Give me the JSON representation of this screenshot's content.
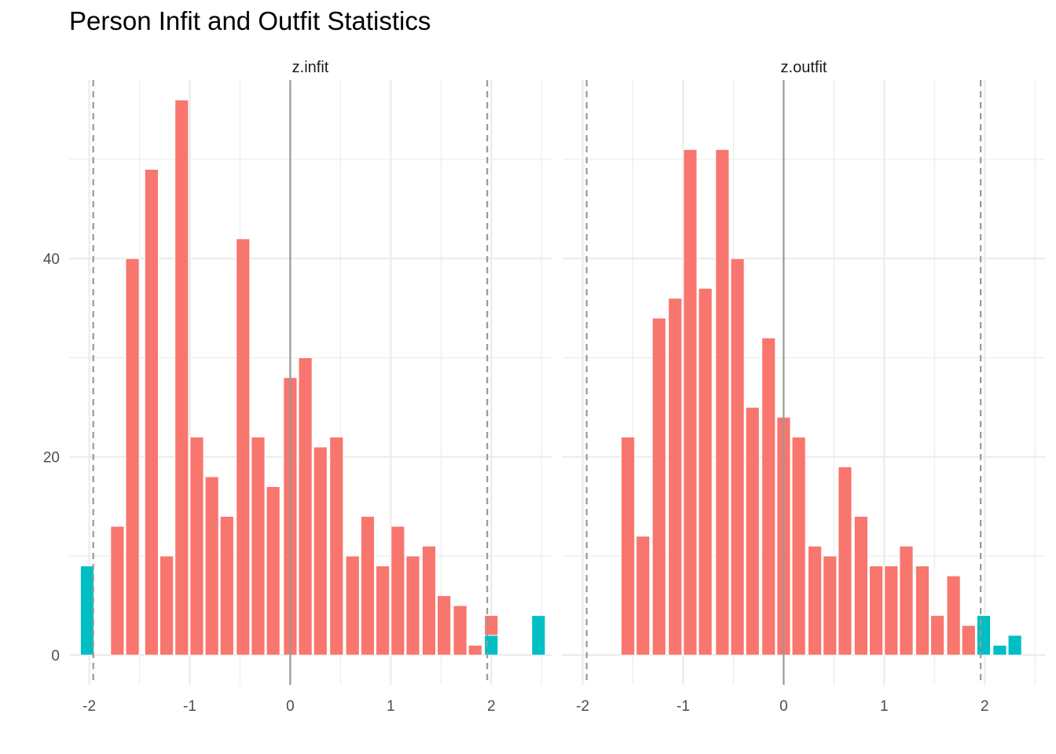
{
  "chart_data": {
    "type": "bar",
    "title": "Person Infit and Outfit Statistics",
    "xlabel": "",
    "ylabel": "",
    "grid": true,
    "legend": "none",
    "colors": {
      "within": "#F8766D",
      "outside": "#00BFC4",
      "refline_solid": "#999999",
      "refline_dashed": "#999999"
    },
    "xlim": [
      -2.2,
      2.6
    ],
    "ylim": [
      -3,
      58
    ],
    "x_ticks": [
      -2,
      -1,
      0,
      1,
      2
    ],
    "x_tick_labels": [
      "-2",
      "-1",
      "0",
      "1",
      "2"
    ],
    "y_ticks": [
      0,
      20,
      40
    ],
    "y_tick_labels": [
      "0",
      "20",
      "40"
    ],
    "reference_lines": {
      "solid": [
        0
      ],
      "dashed": [
        -1.96,
        1.96
      ]
    },
    "panels": [
      {
        "strip_label": "z.infit",
        "bin_width": 0.15,
        "bars": [
          {
            "x": -2.02,
            "within": 0,
            "outside": 9
          },
          {
            "x": -1.72,
            "within": 13,
            "outside": 0
          },
          {
            "x": -1.57,
            "within": 40,
            "outside": 0
          },
          {
            "x": -1.38,
            "within": 49,
            "outside": 0
          },
          {
            "x": -1.23,
            "within": 10,
            "outside": 0
          },
          {
            "x": -1.08,
            "within": 56,
            "outside": 0
          },
          {
            "x": -0.93,
            "within": 22,
            "outside": 0
          },
          {
            "x": -0.78,
            "within": 18,
            "outside": 0
          },
          {
            "x": -0.63,
            "within": 14,
            "outside": 0
          },
          {
            "x": -0.47,
            "within": 42,
            "outside": 0
          },
          {
            "x": -0.32,
            "within": 22,
            "outside": 0
          },
          {
            "x": -0.17,
            "within": 17,
            "outside": 0
          },
          {
            "x": 0.0,
            "within": 28,
            "outside": 0
          },
          {
            "x": 0.15,
            "within": 30,
            "outside": 0
          },
          {
            "x": 0.3,
            "within": 21,
            "outside": 0
          },
          {
            "x": 0.46,
            "within": 22,
            "outside": 0
          },
          {
            "x": 0.62,
            "within": 10,
            "outside": 0
          },
          {
            "x": 0.77,
            "within": 14,
            "outside": 0
          },
          {
            "x": 0.92,
            "within": 9,
            "outside": 0
          },
          {
            "x": 1.07,
            "within": 13,
            "outside": 0
          },
          {
            "x": 1.22,
            "within": 10,
            "outside": 0
          },
          {
            "x": 1.38,
            "within": 11,
            "outside": 0
          },
          {
            "x": 1.53,
            "within": 6,
            "outside": 0
          },
          {
            "x": 1.69,
            "within": 5,
            "outside": 0
          },
          {
            "x": 1.84,
            "within": 1,
            "outside": 0
          },
          {
            "x": 2.0,
            "within": 2,
            "outside": 2
          },
          {
            "x": 2.47,
            "within": 0,
            "outside": 4
          }
        ]
      },
      {
        "strip_label": "z.outfit",
        "bin_width": 0.15,
        "bars": [
          {
            "x": -1.55,
            "within": 22,
            "outside": 0
          },
          {
            "x": -1.4,
            "within": 12,
            "outside": 0
          },
          {
            "x": -1.24,
            "within": 34,
            "outside": 0
          },
          {
            "x": -1.08,
            "within": 36,
            "outside": 0
          },
          {
            "x": -0.93,
            "within": 51,
            "outside": 0
          },
          {
            "x": -0.78,
            "within": 37,
            "outside": 0
          },
          {
            "x": -0.61,
            "within": 51,
            "outside": 0
          },
          {
            "x": -0.46,
            "within": 40,
            "outside": 0
          },
          {
            "x": -0.31,
            "within": 25,
            "outside": 0
          },
          {
            "x": -0.15,
            "within": 32,
            "outside": 0
          },
          {
            "x": 0.0,
            "within": 24,
            "outside": 0
          },
          {
            "x": 0.15,
            "within": 22,
            "outside": 0
          },
          {
            "x": 0.31,
            "within": 11,
            "outside": 0
          },
          {
            "x": 0.46,
            "within": 10,
            "outside": 0
          },
          {
            "x": 0.61,
            "within": 19,
            "outside": 0
          },
          {
            "x": 0.77,
            "within": 14,
            "outside": 0
          },
          {
            "x": 0.92,
            "within": 9,
            "outside": 0
          },
          {
            "x": 1.07,
            "within": 9,
            "outside": 0
          },
          {
            "x": 1.22,
            "within": 11,
            "outside": 0
          },
          {
            "x": 1.38,
            "within": 9,
            "outside": 0
          },
          {
            "x": 1.53,
            "within": 4,
            "outside": 0
          },
          {
            "x": 1.69,
            "within": 8,
            "outside": 0
          },
          {
            "x": 1.84,
            "within": 3,
            "outside": 0
          },
          {
            "x": 1.99,
            "within": 0,
            "outside": 4
          },
          {
            "x": 2.15,
            "within": 0,
            "outside": 1
          },
          {
            "x": 2.3,
            "within": 0,
            "outside": 2
          }
        ]
      }
    ]
  }
}
